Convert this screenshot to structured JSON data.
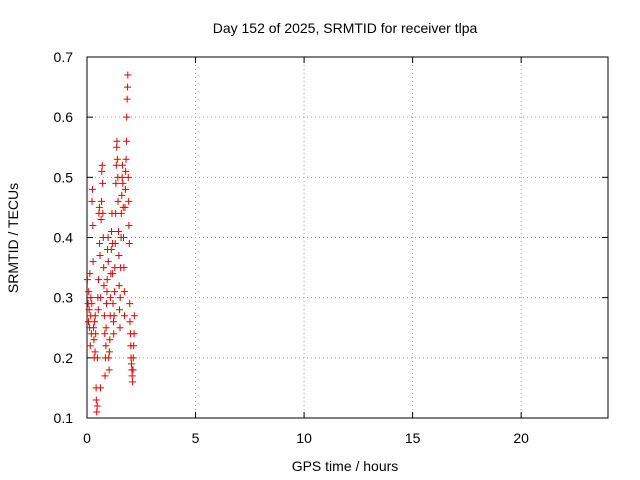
{
  "chart_data": {
    "type": "scatter",
    "title": "Day 152 of 2025, SRMTID for receiver tlpa",
    "xlabel": "GPS time / hours",
    "ylabel": "SRMTID / TECUs",
    "xlim": [
      0,
      24
    ],
    "ylim": [
      0.1,
      0.7
    ],
    "xticks": [
      0,
      5,
      10,
      15,
      20
    ],
    "yticks": [
      0.1,
      0.2,
      0.3,
      0.4,
      0.5,
      0.6,
      0.7
    ],
    "xtick_labels": [
      "0",
      "5",
      "10",
      "15",
      "20"
    ],
    "ytick_labels": [
      "0.1",
      "0.2",
      "0.3",
      "0.4",
      "0.5",
      "0.6",
      "0.7"
    ],
    "grid": true,
    "marker": "+",
    "marker_color": "#e60000",
    "series": [
      {
        "name": "SRMTID",
        "points": [
          [
            0.02,
            0.33
          ],
          [
            0.05,
            0.29
          ],
          [
            0.07,
            0.26
          ],
          [
            0.08,
            0.31
          ],
          [
            0.1,
            0.28
          ],
          [
            0.12,
            0.25
          ],
          [
            0.13,
            0.34
          ],
          [
            0.15,
            0.22
          ],
          [
            0.17,
            0.27
          ],
          [
            0.18,
            0.3
          ],
          [
            0.2,
            0.24
          ],
          [
            0.22,
            0.29
          ],
          [
            0.23,
            0.46
          ],
          [
            0.25,
            0.48
          ],
          [
            0.27,
            0.42
          ],
          [
            0.28,
            0.36
          ],
          [
            0.3,
            0.25
          ],
          [
            0.32,
            0.23
          ],
          [
            0.33,
            0.2
          ],
          [
            0.35,
            0.26
          ],
          [
            0.37,
            0.21
          ],
          [
            0.38,
            0.27
          ],
          [
            0.4,
            0.24
          ],
          [
            0.42,
            0.15
          ],
          [
            0.43,
            0.13
          ],
          [
            0.45,
            0.11
          ],
          [
            0.47,
            0.12
          ],
          [
            0.48,
            0.2
          ],
          [
            0.5,
            0.3
          ],
          [
            0.52,
            0.28
          ],
          [
            0.53,
            0.33
          ],
          [
            0.55,
            0.44
          ],
          [
            0.57,
            0.45
          ],
          [
            0.58,
            0.39
          ],
          [
            0.6,
            0.37
          ],
          [
            0.62,
            0.15
          ],
          [
            0.63,
            0.3
          ],
          [
            0.65,
            0.43
          ],
          [
            0.67,
            0.46
          ],
          [
            0.68,
            0.51
          ],
          [
            0.7,
            0.52
          ],
          [
            0.72,
            0.49
          ],
          [
            0.73,
            0.44
          ],
          [
            0.75,
            0.4
          ],
          [
            0.77,
            0.35
          ],
          [
            0.78,
            0.32
          ],
          [
            0.8,
            0.27
          ],
          [
            0.82,
            0.24
          ],
          [
            0.83,
            0.17
          ],
          [
            0.85,
            0.2
          ],
          [
            0.87,
            0.22
          ],
          [
            0.88,
            0.25
          ],
          [
            0.9,
            0.29
          ],
          [
            0.92,
            0.31
          ],
          [
            0.93,
            0.33
          ],
          [
            0.95,
            0.38
          ],
          [
            0.97,
            0.4
          ],
          [
            0.98,
            0.36
          ],
          [
            1.0,
            0.2
          ],
          [
            1.02,
            0.18
          ],
          [
            1.03,
            0.21
          ],
          [
            1.05,
            0.23
          ],
          [
            1.07,
            0.27
          ],
          [
            1.08,
            0.3
          ],
          [
            1.1,
            0.34
          ],
          [
            1.12,
            0.38
          ],
          [
            1.13,
            0.41
          ],
          [
            1.15,
            0.44
          ],
          [
            1.17,
            0.39
          ],
          [
            1.18,
            0.34
          ],
          [
            1.2,
            0.29
          ],
          [
            1.22,
            0.26
          ],
          [
            1.23,
            0.24
          ],
          [
            1.25,
            0.27
          ],
          [
            1.27,
            0.31
          ],
          [
            1.28,
            0.35
          ],
          [
            1.3,
            0.39
          ],
          [
            1.32,
            0.44
          ],
          [
            1.33,
            0.49
          ],
          [
            1.35,
            0.52
          ],
          [
            1.37,
            0.55
          ],
          [
            1.38,
            0.56
          ],
          [
            1.4,
            0.53
          ],
          [
            1.42,
            0.5
          ],
          [
            1.43,
            0.46
          ],
          [
            1.45,
            0.41
          ],
          [
            1.47,
            0.37
          ],
          [
            1.48,
            0.32
          ],
          [
            1.5,
            0.28
          ],
          [
            1.52,
            0.25
          ],
          [
            1.53,
            0.3
          ],
          [
            1.55,
            0.35
          ],
          [
            1.57,
            0.4
          ],
          [
            1.58,
            0.44
          ],
          [
            1.6,
            0.47
          ],
          [
            1.62,
            0.5
          ],
          [
            1.63,
            0.52
          ],
          [
            1.65,
            0.49
          ],
          [
            1.67,
            0.45
          ],
          [
            1.68,
            0.4
          ],
          [
            1.7,
            0.35
          ],
          [
            1.72,
            0.31
          ],
          [
            1.73,
            0.27
          ],
          [
            1.75,
            0.45
          ],
          [
            1.77,
            0.48
          ],
          [
            1.78,
            0.51
          ],
          [
            1.8,
            0.53
          ],
          [
            1.82,
            0.56
          ],
          [
            1.83,
            0.6
          ],
          [
            1.85,
            0.63
          ],
          [
            1.87,
            0.65
          ],
          [
            1.88,
            0.67
          ],
          [
            1.9,
            0.5
          ],
          [
            1.92,
            0.46
          ],
          [
            1.93,
            0.42
          ],
          [
            1.95,
            0.39
          ],
          [
            1.97,
            0.29
          ],
          [
            1.98,
            0.26
          ],
          [
            2.0,
            0.24
          ],
          [
            2.02,
            0.22
          ],
          [
            2.03,
            0.2
          ],
          [
            2.05,
            0.19
          ],
          [
            2.07,
            0.18
          ],
          [
            2.08,
            0.17
          ],
          [
            2.1,
            0.16
          ],
          [
            2.12,
            0.18
          ],
          [
            2.13,
            0.2
          ],
          [
            2.15,
            0.22
          ],
          [
            2.17,
            0.24
          ],
          [
            2.18,
            0.27
          ]
        ]
      }
    ]
  }
}
